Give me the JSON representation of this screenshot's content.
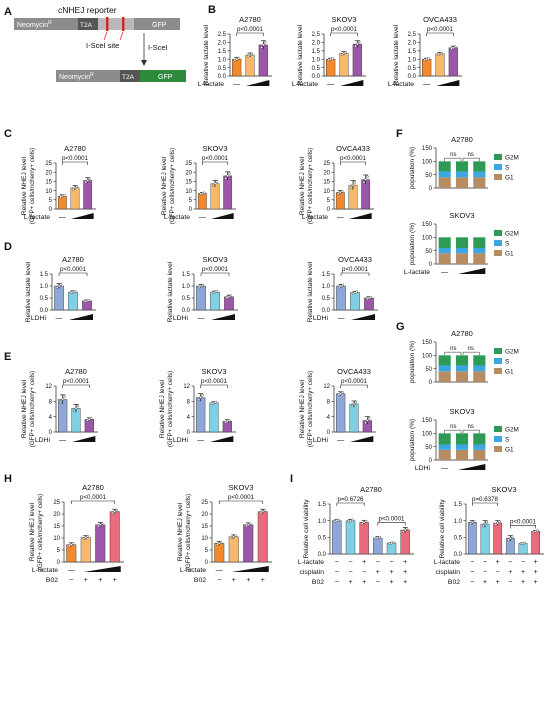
{
  "colors": {
    "orange": "#f28a2b",
    "lightorange": "#f6b86b",
    "purple": "#9b57a8",
    "blue": "#8ea7d6",
    "cyan": "#7fd0e5",
    "pink": "#e96c7e",
    "gray": "#c9c9c9",
    "cycleG2M": "#2f9a55",
    "cycleS": "#3aa7e0",
    "cycleG1": "#b88c63",
    "reporterGray": "#8c8c8c",
    "reporterDark": "#555555",
    "reporterGreen": "#2e8b3e",
    "reporterRed": "#d22"
  },
  "panel_a": {
    "letter": "A",
    "title": "cNHEJ reporter",
    "seg_neo": "Neomycin",
    "seg_neo_sup": "R",
    "seg_t2a": "T2A",
    "seg_gfp": "GFP",
    "site_label": "I-SceI site",
    "enzyme_label": "I-SceI",
    "bottom_neo": "Neomycin",
    "bottom_neo_sup": "R",
    "bottom_t2a": "T2A",
    "bottom_gfp": "GFP"
  },
  "panel_letters": {
    "B": "B",
    "C": "C",
    "D": "D",
    "E": "E",
    "F": "F",
    "G": "G",
    "H": "H",
    "I": "I"
  },
  "treatment": {
    "lactate": "L-lactate",
    "ldhi": "LDHi",
    "cisplatin": "cisplatin",
    "b02": "B02",
    "dash": "—",
    "minus": "−",
    "plus": "+"
  },
  "chart_data": [
    {
      "id": "B1",
      "type": "bar",
      "title": "A2780",
      "ylabel": "Relative lactate level",
      "ylim": [
        0,
        2.5
      ],
      "yticks": [
        0,
        0.5,
        1.0,
        1.5,
        2.0,
        2.5
      ],
      "values": [
        1.0,
        1.25,
        1.85
      ],
      "errors": [
        0.1,
        0.12,
        0.25
      ],
      "colors": [
        "orange",
        "lightorange",
        "purple"
      ],
      "pvalue": "p<0.0001",
      "treatment": "L-lactate"
    },
    {
      "id": "B2",
      "type": "bar",
      "title": "SKOV3",
      "ylabel": "Relative lactate level",
      "ylim": [
        0,
        2.5
      ],
      "yticks": [
        0,
        0.5,
        1.0,
        1.5,
        2.0,
        2.5
      ],
      "values": [
        1.0,
        1.35,
        1.9
      ],
      "errors": [
        0.06,
        0.1,
        0.2
      ],
      "colors": [
        "orange",
        "lightorange",
        "purple"
      ],
      "pvalue": "p<0.0001",
      "treatment": "L-lactate"
    },
    {
      "id": "B3",
      "type": "bar",
      "title": "OVCA433",
      "ylabel": "Relative lactate level",
      "ylim": [
        0,
        2.5
      ],
      "yticks": [
        0,
        0.5,
        1.0,
        1.5,
        2.0,
        2.5
      ],
      "values": [
        1.0,
        1.32,
        1.68
      ],
      "errors": [
        0.06,
        0.08,
        0.1
      ],
      "colors": [
        "orange",
        "lightorange",
        "purple"
      ],
      "pvalue": "p<0.0001",
      "treatment": "L-lactate"
    },
    {
      "id": "C1",
      "type": "bar",
      "title": "A2780",
      "ylabel": "Relative NHEJ level",
      "ylabel2": "(GFP+ cells/mcherry+ cells)",
      "ylim": [
        0,
        25
      ],
      "yticks": [
        0,
        5,
        10,
        15,
        20,
        25
      ],
      "values": [
        7.0,
        11.5,
        15.5
      ],
      "errors": [
        0.7,
        1.2,
        1.5
      ],
      "colors": [
        "orange",
        "lightorange",
        "purple"
      ],
      "pvalue": "p<0.0001",
      "treatment": "L-lactate"
    },
    {
      "id": "C2",
      "type": "bar",
      "title": "SKOV3",
      "ylabel": "Relative NHEJ level",
      "ylabel2": "(GFP+ cells/mcherry+ cells)",
      "ylim": [
        0,
        25
      ],
      "yticks": [
        0,
        5,
        10,
        15,
        20,
        25
      ],
      "values": [
        8.5,
        13.8,
        18.0
      ],
      "errors": [
        0.5,
        1.8,
        2.2
      ],
      "colors": [
        "orange",
        "lightorange",
        "purple"
      ],
      "pvalue": "p<0.0001",
      "treatment": "L-lactate"
    },
    {
      "id": "C3",
      "type": "bar",
      "title": "OVCA433",
      "ylabel": "Relative NHEJ level",
      "ylabel2": "(GFP+ cells/mcherry+ cells)",
      "ylim": [
        0,
        25
      ],
      "yticks": [
        0,
        5,
        10,
        15,
        20,
        25
      ],
      "values": [
        9.0,
        13.0,
        16.0
      ],
      "errors": [
        1.0,
        2.5,
        2.5
      ],
      "colors": [
        "orange",
        "lightorange",
        "purple"
      ],
      "pvalue": "p<0.0001",
      "treatment": "L-lactate"
    },
    {
      "id": "D1",
      "type": "bar",
      "title": "A2780",
      "ylabel": "Relative lactate level",
      "ylim": [
        0,
        1.5
      ],
      "yticks": [
        0,
        0.5,
        1.0,
        1.5
      ],
      "values": [
        1.0,
        0.75,
        0.38
      ],
      "errors": [
        0.1,
        0.05,
        0.04
      ],
      "colors": [
        "blue",
        "cyan",
        "purple"
      ],
      "pvalue": "p<0.0001",
      "treatment": "LDHi"
    },
    {
      "id": "D2",
      "type": "bar",
      "title": "SKOV3",
      "ylabel": "Relative lactate level",
      "ylim": [
        0,
        1.5
      ],
      "yticks": [
        0,
        0.5,
        1.0,
        1.5
      ],
      "values": [
        1.0,
        0.75,
        0.55
      ],
      "errors": [
        0.07,
        0.04,
        0.07
      ],
      "colors": [
        "blue",
        "cyan",
        "purple"
      ],
      "pvalue": "p<0.0001",
      "treatment": "LDHi"
    },
    {
      "id": "D3",
      "type": "bar",
      "title": "OVCA433",
      "ylabel": "Relative lactate level",
      "ylim": [
        0,
        1.5
      ],
      "yticks": [
        0,
        0.5,
        1.0,
        1.5
      ],
      "values": [
        1.0,
        0.73,
        0.5
      ],
      "errors": [
        0.07,
        0.05,
        0.05
      ],
      "colors": [
        "blue",
        "cyan",
        "purple"
      ],
      "pvalue": "p<0.0001",
      "treatment": "LDHi"
    },
    {
      "id": "E1",
      "type": "bar",
      "title": "A2780",
      "ylabel": "Relative NHEJ level",
      "ylabel2": "(GFP+ cells/mcherry+ cells)",
      "ylim": [
        0,
        12
      ],
      "yticks": [
        0,
        4,
        8,
        12
      ],
      "values": [
        8.5,
        6.2,
        3.3
      ],
      "errors": [
        1.2,
        1.0,
        0.4
      ],
      "colors": [
        "blue",
        "cyan",
        "purple"
      ],
      "pvalue": "p<0.0001",
      "treatment": "LDHi"
    },
    {
      "id": "E2",
      "type": "bar",
      "title": "SKOV3",
      "ylabel": "Relative NHEJ level",
      "ylabel2": "(GFP+ cells/mcherry+ cells)",
      "ylim": [
        0,
        12
      ],
      "yticks": [
        0,
        4,
        8,
        12
      ],
      "values": [
        9.0,
        7.6,
        2.8
      ],
      "errors": [
        1.0,
        0.3,
        0.4
      ],
      "colors": [
        "blue",
        "cyan",
        "purple"
      ],
      "pvalue": "p<0.0001",
      "treatment": "LDHi"
    },
    {
      "id": "E3",
      "type": "bar",
      "title": "OVCA433",
      "ylabel": "Relative NHEJ level",
      "ylabel2": "(GFP+ cells/mcherry+ cells)",
      "ylim": [
        0,
        12
      ],
      "yticks": [
        0,
        4,
        8,
        12
      ],
      "values": [
        10.0,
        7.3,
        3.0
      ],
      "errors": [
        0.5,
        0.8,
        1.0
      ],
      "colors": [
        "blue",
        "cyan",
        "purple"
      ],
      "pvalue": "p<0.0001",
      "treatment": "LDHi"
    },
    {
      "id": "H1",
      "type": "bar",
      "title": "A2780",
      "ylabel": "Relative NHEJ level",
      "ylabel2": "(GFP+ cells/mcherry+ cells)",
      "ylim": [
        0,
        25
      ],
      "yticks": [
        0,
        5,
        10,
        15,
        20,
        25
      ],
      "values": [
        7.2,
        10.2,
        15.5,
        21.0
      ],
      "errors": [
        0.8,
        0.8,
        1.0,
        1.0
      ],
      "colors": [
        "orange",
        "lightorange",
        "purple",
        "pink"
      ],
      "pvalue": "p<0.0001",
      "rows": [
        {
          "label": "L-lactate",
          "signs": [
            "dash",
            "",
            "wedge",
            ""
          ]
        },
        {
          "label": "B02",
          "signs": [
            "minus",
            "plus",
            "plus",
            "plus"
          ]
        }
      ]
    },
    {
      "id": "H2",
      "type": "bar",
      "title": "SKOV3",
      "ylabel": "Relative NHEJ level",
      "ylabel2": "(GFP+ cells/mcherry+ cells)",
      "ylim": [
        0,
        25
      ],
      "yticks": [
        0,
        5,
        10,
        15,
        20,
        25
      ],
      "values": [
        7.8,
        10.5,
        15.5,
        21.0
      ],
      "errors": [
        0.8,
        0.8,
        0.8,
        1.0
      ],
      "colors": [
        "orange",
        "lightorange",
        "purple",
        "pink"
      ],
      "pvalue": "p<0.0001",
      "rows": [
        {
          "label": "L-lactate",
          "signs": [
            "dash",
            "",
            "wedge",
            ""
          ]
        },
        {
          "label": "B02",
          "signs": [
            "minus",
            "plus",
            "plus",
            "plus"
          ]
        }
      ]
    },
    {
      "id": "I1",
      "type": "bar",
      "title": "A2780",
      "ylabel": "Relative cell viability",
      "ylim": [
        0,
        1.5
      ],
      "yticks": [
        0,
        0.5,
        1.0,
        1.5
      ],
      "values": [
        1.0,
        1.0,
        0.95,
        0.48,
        0.33,
        0.72
      ],
      "errors": [
        0.03,
        0.04,
        0.06,
        0.04,
        0.02,
        0.08
      ],
      "colors": [
        "blue",
        "cyan",
        "pink",
        "blue",
        "cyan",
        "pink"
      ],
      "pvalue": "p=0.6726",
      "pvalue2": "p<0.0001",
      "rows": [
        {
          "label": "L-lactate",
          "signs": [
            "minus",
            "minus",
            "plus",
            "minus",
            "minus",
            "plus"
          ]
        },
        {
          "label": "cisplatin",
          "signs": [
            "minus",
            "minus",
            "minus",
            "plus",
            "plus",
            "plus"
          ]
        },
        {
          "label": "B02",
          "signs": [
            "minus",
            "plus",
            "plus",
            "minus",
            "plus",
            "plus"
          ]
        }
      ]
    },
    {
      "id": "I2",
      "type": "bar",
      "title": "SKOV3",
      "ylabel": "Relative cell viability",
      "ylim": [
        0,
        1.5
      ],
      "yticks": [
        0,
        0.5,
        1.0,
        1.5
      ],
      "values": [
        0.95,
        0.9,
        0.93,
        0.47,
        0.32,
        0.68
      ],
      "errors": [
        0.06,
        0.1,
        0.07,
        0.08,
        0.02,
        0.03
      ],
      "colors": [
        "blue",
        "cyan",
        "pink",
        "blue",
        "cyan",
        "pink"
      ],
      "pvalue": "p=0.6378",
      "pvalue2": "p<0.0001",
      "rows": [
        {
          "label": "L-lactate",
          "signs": [
            "minus",
            "minus",
            "plus",
            "minus",
            "minus",
            "plus"
          ]
        },
        {
          "label": "cisplatin",
          "signs": [
            "minus",
            "minus",
            "minus",
            "plus",
            "plus",
            "plus"
          ]
        },
        {
          "label": "B02",
          "signs": [
            "minus",
            "plus",
            "plus",
            "minus",
            "plus",
            "plus"
          ]
        }
      ]
    },
    {
      "id": "F1",
      "type": "stacked-bar",
      "title": "A2780",
      "ylabel": "population (%)",
      "ylim": [
        0,
        150
      ],
      "yticks": [
        0,
        50,
        100,
        150
      ],
      "series": [
        {
          "name": "G1",
          "values": [
            40,
            40,
            40
          ]
        },
        {
          "name": "S",
          "values": [
            22,
            22,
            22
          ]
        },
        {
          "name": "G2M",
          "values": [
            38,
            38,
            38
          ]
        }
      ],
      "ns": [
        "ns",
        "ns"
      ],
      "treatment": null
    },
    {
      "id": "F2",
      "type": "stacked-bar",
      "title": "SKOV3",
      "ylabel": "population (%)",
      "ylim": [
        0,
        150
      ],
      "yticks": [
        0,
        50,
        100,
        150
      ],
      "series": [
        {
          "name": "G1",
          "values": [
            40,
            40,
            40
          ]
        },
        {
          "name": "S",
          "values": [
            20,
            20,
            20
          ]
        },
        {
          "name": "G2M",
          "values": [
            40,
            40,
            40
          ]
        }
      ],
      "ns": [],
      "treatment": "L-lactate"
    },
    {
      "id": "G1",
      "type": "stacked-bar",
      "title": "A2780",
      "ylabel": "population (%)",
      "ylim": [
        0,
        150
      ],
      "yticks": [
        0,
        50,
        100,
        150
      ],
      "series": [
        {
          "name": "G1",
          "values": [
            40,
            40,
            40
          ]
        },
        {
          "name": "S",
          "values": [
            22,
            22,
            22
          ]
        },
        {
          "name": "G2M",
          "values": [
            38,
            38,
            38
          ]
        }
      ],
      "ns": [
        "ns",
        "ns"
      ],
      "treatment": null
    },
    {
      "id": "G2",
      "type": "stacked-bar",
      "title": "SKOV3",
      "ylabel": "population (%)",
      "ylim": [
        0,
        150
      ],
      "yticks": [
        0,
        50,
        100,
        150
      ],
      "series": [
        {
          "name": "G1",
          "values": [
            38,
            38,
            38
          ]
        },
        {
          "name": "S",
          "values": [
            20,
            20,
            20
          ]
        },
        {
          "name": "G2M",
          "values": [
            42,
            42,
            42
          ]
        }
      ],
      "ns": [
        "ns",
        "ns"
      ],
      "treatment": "LDHi"
    }
  ]
}
